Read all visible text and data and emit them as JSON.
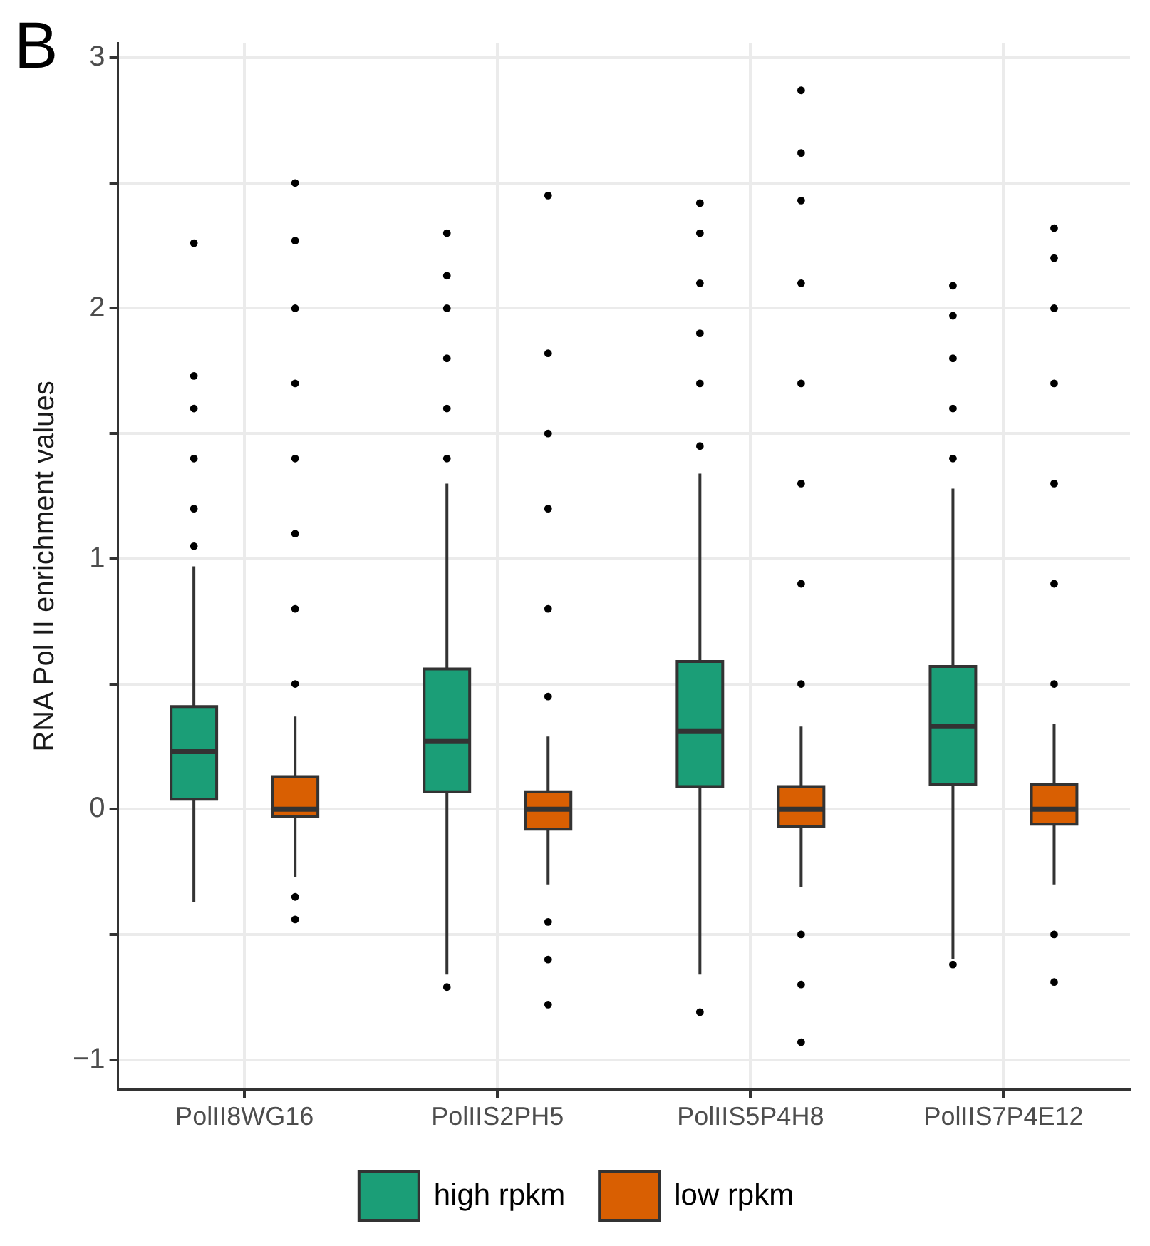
{
  "chart_data": {
    "type": "box",
    "ylabel": "RNA Pol II enrichment values",
    "annotations": [
      "B"
    ],
    "categories": [
      "PolII8WG16",
      "PolIIS2PH5",
      "PolIIS5P4H8",
      "PolIIS7P4E12"
    ],
    "series": [
      {
        "name": "high rpkm",
        "color": "#1b9e77",
        "boxes": [
          {
            "low": -0.37,
            "q1": 0.04,
            "median": 0.23,
            "q3": 0.41,
            "high": 0.97,
            "outliers": [
              1.05,
              1.2,
              1.4,
              1.6,
              1.73,
              2.26
            ]
          },
          {
            "low": -0.66,
            "q1": 0.07,
            "median": 0.27,
            "q3": 0.56,
            "high": 1.3,
            "outliers": [
              -0.71,
              1.4,
              1.6,
              1.8,
              2.0,
              2.13,
              2.3
            ]
          },
          {
            "low": -0.66,
            "q1": 0.09,
            "median": 0.31,
            "q3": 0.59,
            "high": 1.34,
            "outliers": [
              -0.81,
              1.45,
              1.7,
              1.9,
              2.1,
              2.3,
              2.42
            ]
          },
          {
            "low": -0.6,
            "q1": 0.1,
            "median": 0.33,
            "q3": 0.57,
            "high": 1.28,
            "outliers": [
              -0.62,
              1.4,
              1.6,
              1.8,
              1.97,
              2.09
            ]
          }
        ]
      },
      {
        "name": "low rpkm",
        "color": "#d95f02",
        "boxes": [
          {
            "low": -0.27,
            "q1": -0.03,
            "median": 0,
            "q3": 0.13,
            "high": 0.37,
            "outliers": [
              -0.44,
              -0.35,
              0.5,
              0.8,
              1.1,
              1.4,
              1.7,
              2.0,
              2.27,
              2.5
            ]
          },
          {
            "low": -0.3,
            "q1": -0.08,
            "median": 0,
            "q3": 0.07,
            "high": 0.29,
            "outliers": [
              -0.78,
              -0.6,
              -0.45,
              0.45,
              0.8,
              1.2,
              1.5,
              1.82,
              2.45
            ]
          },
          {
            "low": -0.31,
            "q1": -0.07,
            "median": 0,
            "q3": 0.09,
            "high": 0.33,
            "outliers": [
              -0.93,
              -0.7,
              -0.5,
              0.5,
              0.9,
              1.3,
              1.7,
              2.1,
              2.43,
              2.62,
              2.87
            ]
          },
          {
            "low": -0.3,
            "q1": -0.06,
            "median": 0,
            "q3": 0.1,
            "high": 0.34,
            "outliers": [
              -0.69,
              -0.5,
              0.5,
              0.9,
              1.3,
              1.7,
              2.0,
              2.2,
              2.32
            ]
          }
        ]
      }
    ],
    "ylim": [
      -1.12,
      3.06
    ],
    "yticks": [
      -1,
      {
        "value": -0.5,
        "label": null
      },
      0,
      {
        "value": 0.5,
        "label": null
      },
      1,
      {
        "value": 1.5,
        "label": null
      },
      2,
      {
        "value": 2.5,
        "label": null
      },
      3
    ],
    "grid": true,
    "legend": "bottom"
  }
}
